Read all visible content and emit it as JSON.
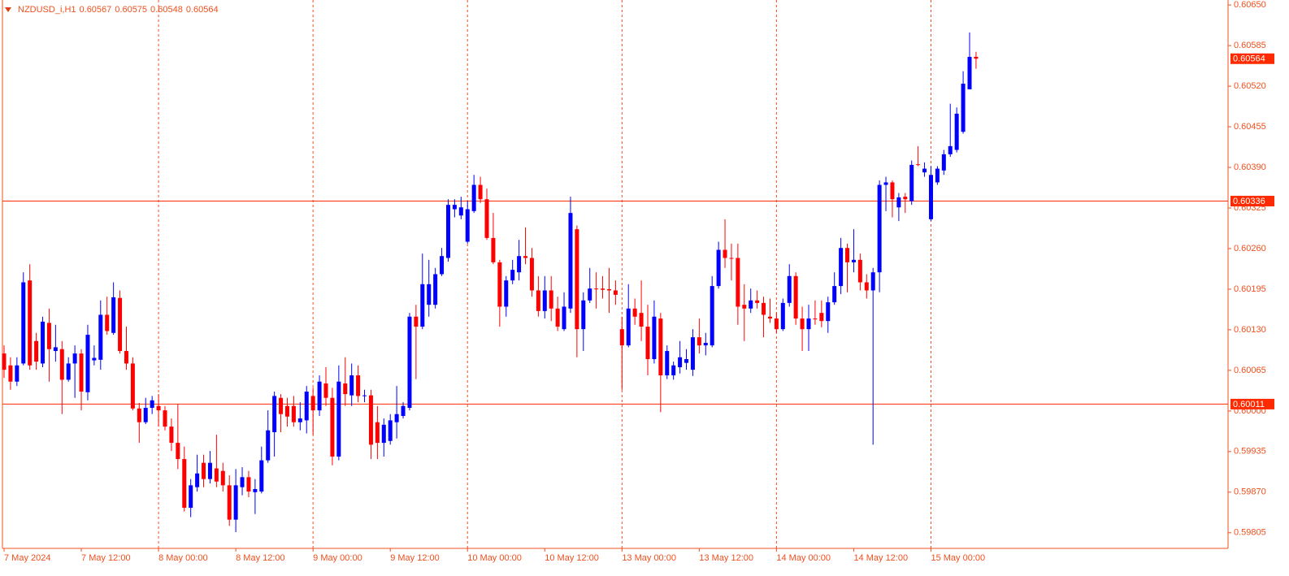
{
  "chart_data": {
    "type": "candlestick",
    "title": "NZDUSD_i,H1",
    "categories": [
      "7 May 2024",
      null,
      null,
      null,
      null,
      null,
      null,
      null,
      null,
      null,
      null,
      null,
      "7 May 12:00",
      null,
      null,
      null,
      null,
      null,
      null,
      null,
      null,
      null,
      null,
      null,
      "8 May 00:00",
      null,
      null,
      null,
      null,
      null,
      null,
      null,
      null,
      null,
      null,
      null,
      "8 May 12:00",
      null,
      null,
      null,
      null,
      null,
      null,
      null,
      null,
      null,
      null,
      null,
      "9 May 00:00",
      null,
      null,
      null,
      null,
      null,
      null,
      null,
      null,
      null,
      null,
      null,
      "9 May 12:00",
      null,
      null,
      null,
      null,
      null,
      null,
      null,
      null,
      null,
      null,
      null,
      "10 May 00:00",
      null,
      null,
      null,
      null,
      null,
      null,
      null,
      null,
      null,
      null,
      null,
      "10 May 12:00",
      null,
      null,
      null,
      null,
      null,
      null,
      null,
      null,
      null,
      null,
      null,
      "13 May 00:00",
      null,
      null,
      null,
      null,
      null,
      null,
      null,
      null,
      null,
      null,
      null,
      "13 May 12:00",
      null,
      null,
      null,
      null,
      null,
      null,
      null,
      null,
      null,
      null,
      null,
      "14 May 00:00",
      null,
      null,
      null,
      null,
      null,
      null,
      null,
      null,
      null,
      null,
      null,
      "14 May 12:00",
      null,
      null,
      null,
      null,
      null,
      null,
      null,
      null,
      null,
      null,
      null,
      "15 May 00:00",
      null,
      null,
      null,
      null,
      null,
      null,
      null
    ],
    "open": [
      0.60092,
      0.60073,
      0.60047,
      0.60076,
      0.60209,
      0.60112,
      0.60076,
      0.60141,
      0.60096,
      0.60099,
      0.6005,
      0.60076,
      0.60092,
      0.6003,
      0.60081,
      0.60082,
      0.60154,
      0.60125,
      0.60181,
      0.60096,
      0.60076,
      0.60004,
      0.59982,
      0.60005,
      0.60008,
      0.60001,
      0.59975,
      0.59949,
      0.59923,
      0.59845,
      0.59878,
      0.59917,
      0.59891,
      0.59908,
      0.59904,
      0.59881,
      0.59826,
      0.59878,
      0.59894,
      0.5987,
      0.59871,
      0.59921,
      0.59966,
      0.60021,
      0.60008,
      0.60008,
      0.59982,
      0.59985,
      0.60024,
      0.60001,
      0.60044,
      0.60021,
      0.59927,
      0.60044,
      0.60025,
      0.60057,
      0.60024,
      0.60025,
      0.59982,
      0.59949,
      0.59952,
      0.59982,
      0.59992,
      0.60005,
      0.60151,
      0.60135,
      0.6017,
      0.6017,
      0.60219,
      0.60245,
      0.60323,
      0.60313,
      0.60271,
      0.6032,
      0.60362,
      0.60339,
      0.60277,
      0.60238,
      0.60167,
      0.60209,
      0.60222,
      0.60248,
      0.60245,
      0.60193,
      0.6016,
      0.60193,
      0.60164,
      0.60131,
      0.60164,
      0.60291,
      0.60131,
      0.60177,
      0.60196,
      0.60196,
      0.60195,
      0.60193,
      0.60131,
      0.60105,
      0.60164,
      0.60157,
      0.60135,
      0.60083,
      0.60148,
      0.60057,
      0.60057,
      0.6007,
      0.60077,
      0.60066,
      0.60118,
      0.60105,
      0.60105,
      0.602,
      0.60258,
      0.60245,
      0.60245,
      0.6017,
      0.60164,
      0.60177,
      0.60173,
      0.60151,
      0.60148,
      0.60131,
      0.60173,
      0.60216,
      0.60148,
      0.60131,
      0.60148,
      0.60157,
      0.60144,
      0.60174,
      0.602,
      0.60261,
      0.60238,
      0.60242,
      0.60206,
      0.60193,
      0.60222,
      0.60362,
      0.60366,
      0.60326,
      0.60343,
      0.60336,
      0.60395,
      0.60382,
      0.60307,
      0.60366,
      0.60385,
      0.60411,
      0.60418,
      0.60447,
      0.60515,
      0.60567
    ],
    "high": [
      0.60105,
      0.60086,
      0.60086,
      0.60222,
      0.60235,
      0.60125,
      0.60151,
      0.60164,
      0.60138,
      0.60112,
      0.60086,
      0.60105,
      0.60099,
      0.60138,
      0.60105,
      0.60177,
      0.60183,
      0.60206,
      0.60193,
      0.60135,
      0.60086,
      0.60013,
      0.60021,
      0.60024,
      0.60027,
      0.60008,
      0.59988,
      0.60011,
      0.59943,
      0.59891,
      0.5993,
      0.5993,
      0.59936,
      0.59962,
      0.59917,
      0.59897,
      0.59907,
      0.5991,
      0.59904,
      0.59891,
      0.59943,
      0.60001,
      0.60031,
      0.60027,
      0.60021,
      0.60024,
      0.60014,
      0.6004,
      0.60037,
      0.60057,
      0.6007,
      0.60037,
      0.60073,
      0.60086,
      0.60076,
      0.60073,
      0.60034,
      0.60034,
      0.60008,
      0.59988,
      0.59995,
      0.6004,
      0.60014,
      0.60157,
      0.6017,
      0.60252,
      0.60242,
      0.60229,
      0.60261,
      0.60339,
      0.60339,
      0.60343,
      0.60336,
      0.60378,
      0.60375,
      0.60356,
      0.60317,
      0.60242,
      0.60216,
      0.60242,
      0.60274,
      0.60294,
      0.60261,
      0.60216,
      0.60216,
      0.60216,
      0.60183,
      0.6019,
      0.60343,
      0.60297,
      0.6019,
      0.60229,
      0.60222,
      0.60216,
      0.60229,
      0.60209,
      0.60151,
      0.60203,
      0.6018,
      0.60209,
      0.6017,
      0.60177,
      0.60157,
      0.60105,
      0.60079,
      0.60112,
      0.60099,
      0.60131,
      0.60148,
      0.60125,
      0.60216,
      0.60271,
      0.60307,
      0.60268,
      0.60268,
      0.60203,
      0.60196,
      0.60193,
      0.60183,
      0.6018,
      0.60157,
      0.6018,
      0.60235,
      0.60222,
      0.60167,
      0.6017,
      0.60177,
      0.60177,
      0.60183,
      0.60222,
      0.60277,
      0.60268,
      0.60291,
      0.60252,
      0.60219,
      0.60229,
      0.60369,
      0.60375,
      0.60369,
      0.60349,
      0.60349,
      0.60401,
      0.60424,
      0.60398,
      0.60392,
      0.60392,
      0.60418,
      0.60492,
      0.60486,
      0.60544,
      0.60606,
      0.60575
    ],
    "low": [
      0.60053,
      0.60034,
      0.6004,
      0.60073,
      0.60066,
      0.60066,
      0.6007,
      0.60047,
      0.60079,
      0.59995,
      0.60047,
      0.60021,
      0.60001,
      0.60017,
      0.60073,
      0.60066,
      0.60122,
      0.60122,
      0.60092,
      0.60066,
      0.60001,
      0.59949,
      0.59979,
      0.59995,
      0.59975,
      0.59969,
      0.59936,
      0.59907,
      0.59839,
      0.5983,
      0.59871,
      0.59878,
      0.59884,
      0.59878,
      0.59871,
      0.59816,
      0.59806,
      0.59865,
      0.59862,
      0.59835,
      0.59868,
      0.59917,
      0.59927,
      0.59966,
      0.59975,
      0.59975,
      0.59969,
      0.59964,
      0.59962,
      0.59992,
      0.60008,
      0.59913,
      0.59921,
      0.60008,
      0.60008,
      0.60014,
      0.60014,
      0.59923,
      0.59923,
      0.59927,
      0.59946,
      0.59956,
      0.59988,
      0.60001,
      0.60051,
      0.60131,
      0.60151,
      0.60164,
      0.60216,
      0.60239,
      0.6031,
      0.60307,
      0.60268,
      0.60317,
      0.60333,
      0.60274,
      0.60235,
      0.60135,
      0.60151,
      0.60203,
      0.60209,
      0.60235,
      0.60183,
      0.60151,
      0.60148,
      0.60144,
      0.60128,
      0.60128,
      0.60157,
      0.60086,
      0.60096,
      0.60173,
      0.60164,
      0.6018,
      0.60157,
      0.6017,
      0.60034,
      0.60102,
      0.60138,
      0.60112,
      0.60057,
      0.60076,
      0.59998,
      0.60051,
      0.6005,
      0.6006,
      0.60066,
      0.60056,
      0.60092,
      0.60089,
      0.60102,
      0.60196,
      0.60229,
      0.60209,
      0.60138,
      0.60112,
      0.60157,
      0.60164,
      0.60118,
      0.60141,
      0.60125,
      0.60128,
      0.60167,
      0.60138,
      0.60096,
      0.60096,
      0.60138,
      0.60134,
      0.60125,
      0.6017,
      0.60187,
      0.6019,
      0.60222,
      0.60193,
      0.6018,
      0.59946,
      0.6019,
      0.6032,
      0.6031,
      0.60304,
      0.60317,
      0.6033,
      0.60392,
      0.60375,
      0.60304,
      0.60362,
      0.60378,
      0.60407,
      0.60414,
      0.60444,
      0.60515,
      0.60548
    ],
    "close": [
      0.60066,
      0.60047,
      0.60073,
      0.60206,
      0.60073,
      0.60079,
      0.60143,
      0.60099,
      0.60102,
      0.6005,
      0.60076,
      0.60092,
      0.60031,
      0.60122,
      0.60085,
      0.60154,
      0.60128,
      0.60182,
      0.60096,
      0.60076,
      0.60004,
      0.59982,
      0.60005,
      0.60017,
      0.60001,
      0.59975,
      0.59949,
      0.59923,
      0.59845,
      0.59881,
      0.599,
      0.59891,
      0.59917,
      0.59887,
      0.59881,
      0.59826,
      0.59881,
      0.59894,
      0.59871,
      0.59875,
      0.59921,
      0.59969,
      0.60024,
      0.59995,
      0.59991,
      0.59982,
      0.59988,
      0.60031,
      0.60001,
      0.60047,
      0.60021,
      0.59927,
      0.60047,
      0.60027,
      0.60057,
      0.60024,
      0.60025,
      0.59946,
      0.59949,
      0.59978,
      0.59985,
      0.59995,
      0.60008,
      0.60151,
      0.60135,
      0.60203,
      0.60203,
      0.60219,
      0.60248,
      0.6033,
      0.6033,
      0.60326,
      0.60323,
      0.60362,
      0.60339,
      0.60277,
      0.60238,
      0.60167,
      0.60209,
      0.60226,
      0.60248,
      0.60245,
      0.60193,
      0.6016,
      0.60193,
      0.60164,
      0.60135,
      0.60167,
      0.60317,
      0.60131,
      0.60177,
      0.60196,
      0.60195,
      0.60194,
      0.60193,
      0.60186,
      0.60105,
      0.60164,
      0.60151,
      0.60135,
      0.60083,
      0.60151,
      0.60057,
      0.60096,
      0.60073,
      0.60086,
      0.60083,
      0.60118,
      0.60105,
      0.60109,
      0.602,
      0.60258,
      0.60245,
      0.60245,
      0.60167,
      0.60164,
      0.60177,
      0.60173,
      0.60154,
      0.60148,
      0.60131,
      0.60173,
      0.60216,
      0.60148,
      0.60131,
      0.60148,
      0.60148,
      0.60144,
      0.60174,
      0.602,
      0.60261,
      0.60238,
      0.60242,
      0.60206,
      0.60193,
      0.60222,
      0.60362,
      0.60366,
      0.60339,
      0.60342,
      0.60339,
      0.60394,
      0.60395,
      0.60388,
      0.60378,
      0.60388,
      0.60411,
      0.60424,
      0.60476,
      0.60524,
      0.60567,
      0.60564
    ],
    "up_color": "#0000ff",
    "down_color": "#ff0000",
    "axis_color": "#f0501e",
    "hline_color": "#ff2a00",
    "ylim": [
      0.5978,
      0.60658
    ],
    "yticks": [
      {
        "value": 0.6065,
        "label": "0.60650"
      },
      0.60585,
      {
        "value": 0.6052,
        "label": "0.60520"
      },
      0.60455,
      {
        "value": 0.6039,
        "label": "0.60390"
      },
      0.60325,
      {
        "value": 0.6026,
        "label": "0.60260"
      },
      0.60195,
      {
        "value": 0.6013,
        "label": "0.60130"
      },
      0.60065,
      {
        "value": 0.6,
        "label": "0.60000"
      },
      0.59935,
      {
        "value": 0.5987,
        "label": "0.59870"
      },
      0.59805
    ],
    "hlines": [
      0.60336,
      0.60011
    ],
    "grid": true
  }
}
